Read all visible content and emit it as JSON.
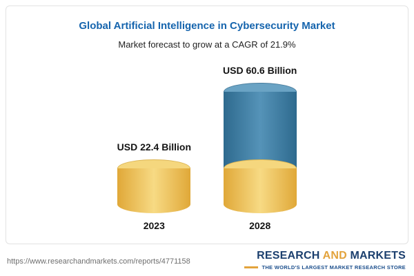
{
  "chart_data": {
    "type": "bar",
    "bar_style": "cylinder",
    "title": "Global Artificial Intelligence in Cybersecurity Market",
    "subtitle": "Market forecast to grow at a CAGR of 21.9%",
    "categories": [
      "2023",
      "2028"
    ],
    "values": [
      22.4,
      60.6
    ],
    "value_labels": [
      "USD 22.4 Billion",
      "USD 60.6 Billion"
    ],
    "unit": "USD Billion",
    "axes_visible": false,
    "grid": false,
    "legend": "none",
    "colors": {
      "bar_2023": "#EDC14F",
      "bar_2028_top_segment": "#3F7CA1",
      "bar_2028_base_segment": "#EDC14F",
      "title_text": "#1564AD"
    },
    "notes": "2028 cylinder is stacked: yellow base segment equals the 2023 value (22.4), blue upper segment is the growth to 60.6."
  },
  "footer": {
    "url": "https://www.researchandmarkets.com/reports/4771158",
    "logo": {
      "word1": "RESEARCH",
      "word2": "AND",
      "word3": "MARKETS",
      "tagline": "THE WORLD'S LARGEST MARKET RESEARCH STORE"
    }
  }
}
